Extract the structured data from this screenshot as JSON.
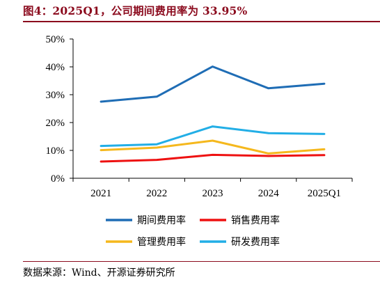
{
  "title": "图4：2025Q1，公司期间费用率为 33.95%",
  "source": "数据来源：Wind、开源证券研究所",
  "chart_data": {
    "type": "line",
    "categories": [
      "2021",
      "2022",
      "2023",
      "2024",
      "2025Q1"
    ],
    "ylim": [
      0,
      50
    ],
    "yticks": [
      0,
      10,
      20,
      30,
      40,
      50
    ],
    "ytick_labels": [
      "0%",
      "10%",
      "20%",
      "30%",
      "40%",
      "50%"
    ],
    "grid": false,
    "legend_position": "bottom",
    "series": [
      {
        "name": "期间费用率",
        "color": "#1f6db5",
        "values": [
          27.5,
          29.3,
          40.1,
          32.3,
          33.95
        ]
      },
      {
        "name": "销售费用率",
        "color": "#ee1111",
        "values": [
          6.0,
          6.6,
          8.4,
          8.0,
          8.3
        ]
      },
      {
        "name": "管理费用率",
        "color": "#f5b81d",
        "values": [
          10.1,
          11.0,
          13.5,
          8.9,
          10.4
        ]
      },
      {
        "name": "研发费用率",
        "color": "#22aee6",
        "values": [
          11.6,
          12.2,
          18.6,
          16.2,
          15.9
        ]
      }
    ]
  }
}
